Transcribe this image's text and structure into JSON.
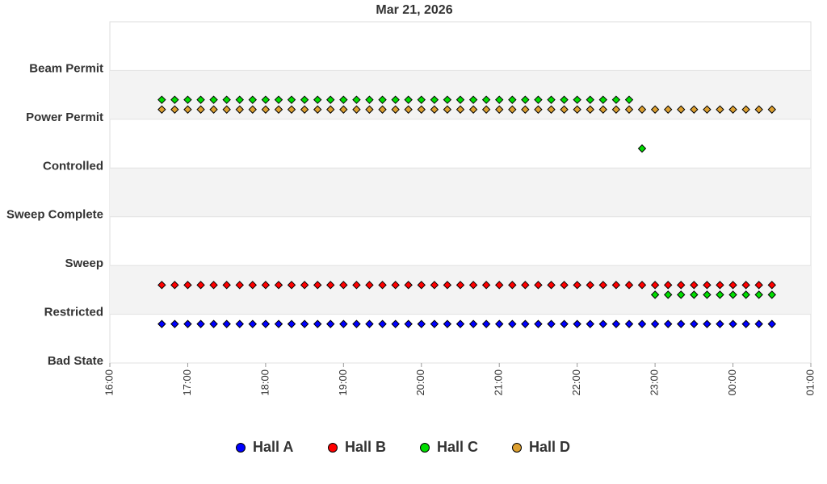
{
  "chart_data": {
    "type": "scatter",
    "title": "Mar 21, 2026",
    "x": [
      16.667,
      16.833,
      17,
      17.167,
      17.333,
      17.5,
      17.667,
      17.833,
      18,
      18.167,
      18.333,
      18.5,
      18.667,
      18.833,
      19,
      19.167,
      19.333,
      19.5,
      19.667,
      19.833,
      20,
      20.167,
      20.333,
      20.5,
      20.667,
      20.833,
      21,
      21.167,
      21.333,
      21.5,
      21.667,
      21.833,
      22,
      22.167,
      22.333,
      22.5,
      22.667,
      22.833,
      23,
      23.167,
      23.333,
      23.5,
      23.667,
      23.833,
      24,
      24.167,
      24.333,
      24.5
    ],
    "xlim": [
      16,
      25
    ],
    "xticks": [
      {
        "value": 16,
        "label": "16:00"
      },
      {
        "value": 17,
        "label": "17:00"
      },
      {
        "value": 18,
        "label": "18:00"
      },
      {
        "value": 19,
        "label": "19:00"
      },
      {
        "value": 20,
        "label": "20:00"
      },
      {
        "value": 21,
        "label": "21:00"
      },
      {
        "value": 22,
        "label": "22:00"
      },
      {
        "value": 23,
        "label": "23:00"
      },
      {
        "value": 24,
        "label": "00:00"
      },
      {
        "value": 25,
        "label": "01:00"
      }
    ],
    "ylim": [
      0,
      7
    ],
    "yticks": [
      {
        "value": 0,
        "label": "Bad State"
      },
      {
        "value": 1,
        "label": "Restricted"
      },
      {
        "value": 2,
        "label": "Sweep"
      },
      {
        "value": 3,
        "label": "Sweep Complete"
      },
      {
        "value": 4,
        "label": "Controlled"
      },
      {
        "value": 5,
        "label": "Power Permit"
      },
      {
        "value": 6,
        "label": "Beam Permit"
      }
    ],
    "grid": true,
    "legend": "bottom",
    "series": [
      {
        "name": "Hall A",
        "color": "#0000ff",
        "values": [
          0.8,
          0.8,
          0.8,
          0.8,
          0.8,
          0.8,
          0.8,
          0.8,
          0.8,
          0.8,
          0.8,
          0.8,
          0.8,
          0.8,
          0.8,
          0.8,
          0.8,
          0.8,
          0.8,
          0.8,
          0.8,
          0.8,
          0.8,
          0.8,
          0.8,
          0.8,
          0.8,
          0.8,
          0.8,
          0.8,
          0.8,
          0.8,
          0.8,
          0.8,
          0.8,
          0.8,
          0.8,
          0.8,
          0.8,
          0.8,
          0.8,
          0.8,
          0.8,
          0.8,
          0.8,
          0.8,
          0.8,
          0.8
        ]
      },
      {
        "name": "Hall B",
        "color": "#ff0000",
        "values": [
          1.6,
          1.6,
          1.6,
          1.6,
          1.6,
          1.6,
          1.6,
          1.6,
          1.6,
          1.6,
          1.6,
          1.6,
          1.6,
          1.6,
          1.6,
          1.6,
          1.6,
          1.6,
          1.6,
          1.6,
          1.6,
          1.6,
          1.6,
          1.6,
          1.6,
          1.6,
          1.6,
          1.6,
          1.6,
          1.6,
          1.6,
          1.6,
          1.6,
          1.6,
          1.6,
          1.6,
          1.6,
          1.6,
          1.6,
          1.6,
          1.6,
          1.6,
          1.6,
          1.6,
          1.6,
          1.6,
          1.6,
          1.6
        ]
      },
      {
        "name": "Hall C",
        "color": "#00dd00",
        "values": [
          5.4,
          5.4,
          5.4,
          5.4,
          5.4,
          5.4,
          5.4,
          5.4,
          5.4,
          5.4,
          5.4,
          5.4,
          5.4,
          5.4,
          5.4,
          5.4,
          5.4,
          5.4,
          5.4,
          5.4,
          5.4,
          5.4,
          5.4,
          5.4,
          5.4,
          5.4,
          5.4,
          5.4,
          5.4,
          5.4,
          5.4,
          5.4,
          5.4,
          5.4,
          5.4,
          5.4,
          5.4,
          4.4,
          1.4,
          1.4,
          1.4,
          1.4,
          1.4,
          1.4,
          1.4,
          1.4,
          1.4,
          1.4
        ]
      },
      {
        "name": "Hall D",
        "color": "#dda030",
        "values": [
          5.2,
          5.2,
          5.2,
          5.2,
          5.2,
          5.2,
          5.2,
          5.2,
          5.2,
          5.2,
          5.2,
          5.2,
          5.2,
          5.2,
          5.2,
          5.2,
          5.2,
          5.2,
          5.2,
          5.2,
          5.2,
          5.2,
          5.2,
          5.2,
          5.2,
          5.2,
          5.2,
          5.2,
          5.2,
          5.2,
          5.2,
          5.2,
          5.2,
          5.2,
          5.2,
          5.2,
          5.2,
          5.2,
          5.2,
          5.2,
          5.2,
          5.2,
          5.2,
          5.2,
          5.2,
          5.2,
          5.2,
          5.2
        ]
      }
    ]
  }
}
